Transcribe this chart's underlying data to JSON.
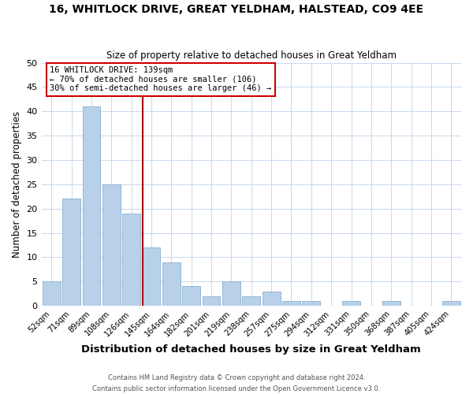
{
  "title": "16, WHITLOCK DRIVE, GREAT YELDHAM, HALSTEAD, CO9 4EE",
  "subtitle": "Size of property relative to detached houses in Great Yeldham",
  "xlabel": "Distribution of detached houses by size in Great Yeldham",
  "ylabel": "Number of detached properties",
  "bar_color": "#b8d0e8",
  "bar_edge_color": "#8ab0d0",
  "background_color": "#ffffff",
  "grid_color": "#c8d8ec",
  "categories": [
    "52sqm",
    "71sqm",
    "89sqm",
    "108sqm",
    "126sqm",
    "145sqm",
    "164sqm",
    "182sqm",
    "201sqm",
    "219sqm",
    "238sqm",
    "257sqm",
    "275sqm",
    "294sqm",
    "312sqm",
    "331sqm",
    "350sqm",
    "368sqm",
    "387sqm",
    "405sqm",
    "424sqm"
  ],
  "values": [
    5,
    22,
    41,
    25,
    19,
    12,
    9,
    4,
    2,
    5,
    2,
    3,
    1,
    1,
    0,
    1,
    0,
    1,
    0,
    0,
    1
  ],
  "ylim": [
    0,
    50
  ],
  "yticks": [
    0,
    5,
    10,
    15,
    20,
    25,
    30,
    35,
    40,
    45,
    50
  ],
  "vline_index": 5,
  "vline_color": "#aa0000",
  "annotation_title": "16 WHITLOCK DRIVE: 139sqm",
  "annotation_line1": "← 70% of detached houses are smaller (106)",
  "annotation_line2": "30% of semi-detached houses are larger (46) →",
  "annotation_box_color": "#ffffff",
  "annotation_box_edge": "#cc0000",
  "footer_line1": "Contains HM Land Registry data © Crown copyright and database right 2024.",
  "footer_line2": "Contains public sector information licensed under the Open Government Licence v3.0."
}
